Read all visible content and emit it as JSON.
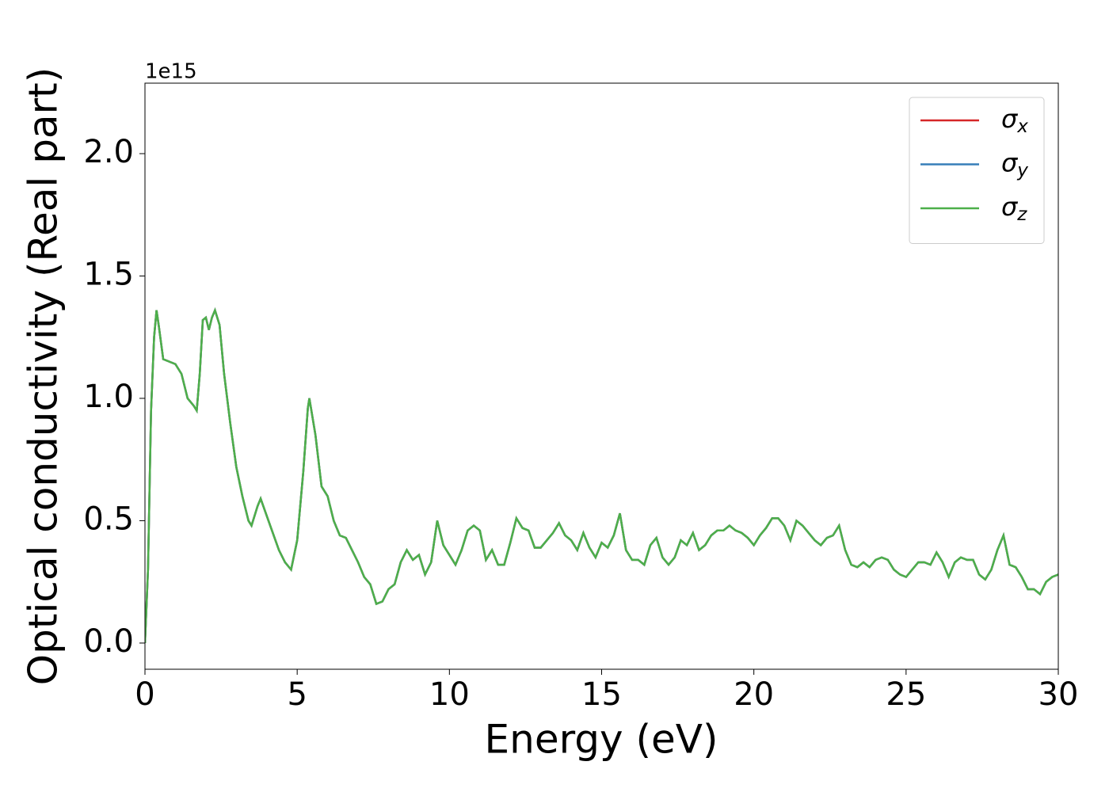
{
  "chart_data": {
    "type": "line",
    "xlabel": "Energy (eV)",
    "ylabel": "Optical conductivity (Real part)",
    "y_offset_label": "1e15",
    "x": [
      0,
      0.1,
      0.2,
      0.3,
      0.38,
      0.45,
      0.6,
      0.8,
      1.0,
      1.2,
      1.4,
      1.6,
      1.7,
      1.8,
      1.9,
      2.0,
      2.1,
      2.2,
      2.3,
      2.45,
      2.6,
      2.8,
      3.0,
      3.2,
      3.4,
      3.5,
      3.7,
      3.8,
      4.0,
      4.2,
      4.4,
      4.6,
      4.8,
      5.0,
      5.2,
      5.35,
      5.4,
      5.6,
      5.8,
      6.0,
      6.2,
      6.4,
      6.6,
      6.8,
      7.0,
      7.2,
      7.4,
      7.6,
      7.8,
      8.0,
      8.2,
      8.4,
      8.6,
      8.8,
      9.0,
      9.2,
      9.4,
      9.6,
      9.8,
      10.0,
      10.2,
      10.4,
      10.6,
      10.8,
      11.0,
      11.2,
      11.4,
      11.6,
      11.8,
      12.0,
      12.2,
      12.4,
      12.6,
      12.8,
      13.0,
      13.2,
      13.4,
      13.6,
      13.8,
      14.0,
      14.2,
      14.4,
      14.6,
      14.8,
      15.0,
      15.2,
      15.4,
      15.6,
      15.8,
      16.0,
      16.2,
      16.4,
      16.6,
      16.8,
      17.0,
      17.2,
      17.4,
      17.6,
      17.8,
      18.0,
      18.2,
      18.4,
      18.6,
      18.8,
      19.0,
      19.2,
      19.4,
      19.6,
      19.8,
      20.0,
      20.2,
      20.4,
      20.6,
      20.8,
      21.0,
      21.2,
      21.4,
      21.6,
      21.8,
      22.0,
      22.2,
      22.4,
      22.6,
      22.8,
      23.0,
      23.2,
      23.4,
      23.6,
      23.8,
      24.0,
      24.2,
      24.4,
      24.6,
      24.8,
      25.0,
      25.2,
      25.4,
      25.6,
      25.8,
      26.0,
      26.2,
      26.4,
      26.6,
      26.8,
      27.0,
      27.2,
      27.4,
      27.6,
      27.8,
      28.0,
      28.2,
      28.4,
      28.6,
      28.8,
      29.0,
      29.2,
      29.4,
      29.6,
      29.8,
      30.0
    ],
    "series": [
      {
        "name": "σx",
        "color": "#d62728",
        "values": [
          0,
          0.3,
          0.95,
          1.25,
          1.36,
          1.3,
          1.16,
          1.15,
          1.14,
          1.1,
          1.0,
          0.97,
          0.95,
          1.1,
          1.32,
          1.33,
          1.28,
          1.33,
          1.36,
          1.3,
          1.1,
          0.9,
          0.72,
          0.6,
          0.5,
          0.48,
          0.56,
          0.59,
          0.52,
          0.45,
          0.38,
          0.33,
          0.3,
          0.42,
          0.7,
          0.96,
          1.0,
          0.85,
          0.64,
          0.6,
          0.5,
          0.44,
          0.43,
          0.38,
          0.33,
          0.27,
          0.24,
          0.16,
          0.17,
          0.22,
          0.24,
          0.33,
          0.38,
          0.34,
          0.36,
          0.28,
          0.33,
          0.5,
          0.4,
          0.36,
          0.32,
          0.38,
          0.46,
          0.48,
          0.46,
          0.34,
          0.38,
          0.32,
          0.32,
          0.41,
          0.51,
          0.47,
          0.46,
          0.39,
          0.39,
          0.42,
          0.45,
          0.49,
          0.44,
          0.42,
          0.38,
          0.45,
          0.39,
          0.35,
          0.41,
          0.39,
          0.44,
          0.53,
          0.38,
          0.34,
          0.34,
          0.32,
          0.4,
          0.43,
          0.35,
          0.32,
          0.35,
          0.42,
          0.4,
          0.45,
          0.38,
          0.4,
          0.44,
          0.46,
          0.46,
          0.48,
          0.46,
          0.45,
          0.43,
          0.4,
          0.44,
          0.47,
          0.51,
          0.51,
          0.48,
          0.42,
          0.5,
          0.48,
          0.45,
          0.42,
          0.4,
          0.43,
          0.44,
          0.48,
          0.38,
          0.32,
          0.31,
          0.33,
          0.31,
          0.34,
          0.35,
          0.34,
          0.3,
          0.28,
          0.27,
          0.3,
          0.33,
          0.33,
          0.32,
          0.37,
          0.33,
          0.27,
          0.33,
          0.35,
          0.34,
          0.34,
          0.28,
          0.26,
          0.3,
          0.38,
          0.44,
          0.32,
          0.31,
          0.27,
          0.22,
          0.22,
          0.2,
          0.25,
          0.27,
          0.28
        ]
      },
      {
        "name": "σy",
        "color": "#377eb8",
        "values": [
          0,
          0.3,
          0.95,
          1.25,
          1.36,
          1.3,
          1.16,
          1.15,
          1.14,
          1.1,
          1.0,
          0.97,
          0.95,
          1.1,
          1.32,
          1.33,
          1.28,
          1.33,
          1.36,
          1.3,
          1.1,
          0.9,
          0.72,
          0.6,
          0.5,
          0.48,
          0.56,
          0.59,
          0.52,
          0.45,
          0.38,
          0.33,
          0.3,
          0.42,
          0.7,
          0.96,
          1.0,
          0.85,
          0.64,
          0.6,
          0.5,
          0.44,
          0.43,
          0.38,
          0.33,
          0.27,
          0.24,
          0.16,
          0.17,
          0.22,
          0.24,
          0.33,
          0.38,
          0.34,
          0.36,
          0.28,
          0.33,
          0.5,
          0.4,
          0.36,
          0.32,
          0.38,
          0.46,
          0.48,
          0.46,
          0.34,
          0.38,
          0.32,
          0.32,
          0.41,
          0.51,
          0.47,
          0.46,
          0.39,
          0.39,
          0.42,
          0.45,
          0.49,
          0.44,
          0.42,
          0.38,
          0.45,
          0.39,
          0.35,
          0.41,
          0.39,
          0.44,
          0.53,
          0.38,
          0.34,
          0.34,
          0.32,
          0.4,
          0.43,
          0.35,
          0.32,
          0.35,
          0.42,
          0.4,
          0.45,
          0.38,
          0.4,
          0.44,
          0.46,
          0.46,
          0.48,
          0.46,
          0.45,
          0.43,
          0.4,
          0.44,
          0.47,
          0.51,
          0.51,
          0.48,
          0.42,
          0.5,
          0.48,
          0.45,
          0.42,
          0.4,
          0.43,
          0.44,
          0.48,
          0.38,
          0.32,
          0.31,
          0.33,
          0.31,
          0.34,
          0.35,
          0.34,
          0.3,
          0.28,
          0.27,
          0.3,
          0.33,
          0.33,
          0.32,
          0.37,
          0.33,
          0.27,
          0.33,
          0.35,
          0.34,
          0.34,
          0.28,
          0.26,
          0.3,
          0.38,
          0.44,
          0.32,
          0.31,
          0.27,
          0.22,
          0.22,
          0.2,
          0.25,
          0.27,
          0.28
        ]
      },
      {
        "name": "σz",
        "color": "#4daf4a",
        "values": [
          0,
          0.3,
          0.95,
          1.25,
          1.36,
          1.3,
          1.16,
          1.15,
          1.14,
          1.1,
          1.0,
          0.97,
          0.95,
          1.1,
          1.32,
          1.33,
          1.28,
          1.33,
          1.36,
          1.3,
          1.1,
          0.9,
          0.72,
          0.6,
          0.5,
          0.48,
          0.56,
          0.59,
          0.52,
          0.45,
          0.38,
          0.33,
          0.3,
          0.42,
          0.7,
          0.96,
          1.0,
          0.85,
          0.64,
          0.6,
          0.5,
          0.44,
          0.43,
          0.38,
          0.33,
          0.27,
          0.24,
          0.16,
          0.17,
          0.22,
          0.24,
          0.33,
          0.38,
          0.34,
          0.36,
          0.28,
          0.33,
          0.5,
          0.4,
          0.36,
          0.32,
          0.38,
          0.46,
          0.48,
          0.46,
          0.34,
          0.38,
          0.32,
          0.32,
          0.41,
          0.51,
          0.47,
          0.46,
          0.39,
          0.39,
          0.42,
          0.45,
          0.49,
          0.44,
          0.42,
          0.38,
          0.45,
          0.39,
          0.35,
          0.41,
          0.39,
          0.44,
          0.53,
          0.38,
          0.34,
          0.34,
          0.32,
          0.4,
          0.43,
          0.35,
          0.32,
          0.35,
          0.42,
          0.4,
          0.45,
          0.38,
          0.4,
          0.44,
          0.46,
          0.46,
          0.48,
          0.46,
          0.45,
          0.43,
          0.4,
          0.44,
          0.47,
          0.51,
          0.51,
          0.48,
          0.42,
          0.5,
          0.48,
          0.45,
          0.42,
          0.4,
          0.43,
          0.44,
          0.48,
          0.38,
          0.32,
          0.31,
          0.33,
          0.31,
          0.34,
          0.35,
          0.34,
          0.3,
          0.28,
          0.27,
          0.3,
          0.33,
          0.33,
          0.32,
          0.37,
          0.33,
          0.27,
          0.33,
          0.35,
          0.34,
          0.34,
          0.28,
          0.26,
          0.3,
          0.38,
          0.44,
          0.32,
          0.31,
          0.27,
          0.22,
          0.22,
          0.2,
          0.25,
          0.27,
          0.28
        ]
      }
    ],
    "xlim": [
      0,
      30
    ],
    "xticks": [
      0,
      5,
      10,
      15,
      20,
      25,
      30
    ],
    "ylim": [
      -0.107,
      2.288
    ],
    "yticks": [
      {
        "value": 0,
        "label": "0.0"
      },
      0.5,
      {
        "value": 1,
        "label": "1.0"
      },
      1.5,
      {
        "value": 2,
        "label": "2.0"
      }
    ],
    "grid": false,
    "legend": "upper right"
  }
}
